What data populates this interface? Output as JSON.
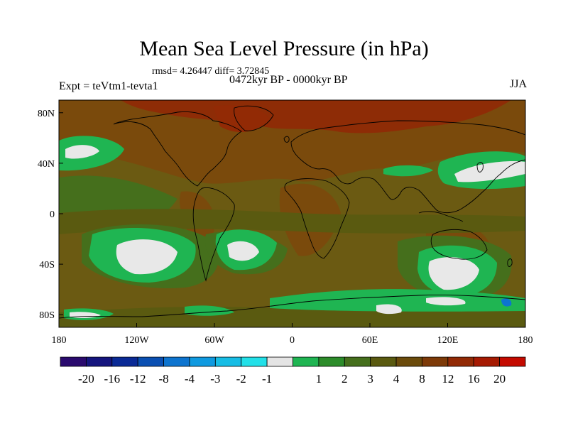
{
  "title": "Mean Sea Level Pressure (in hPa)",
  "stats_text": "rmsd= 4.26447 diff= 3.72845",
  "period_text": "0472kyr BP - 0000kyr BP",
  "experiment_label": "Expt = teVtm1-tevta1",
  "season": "JJA",
  "map": {
    "lon_range": [
      -180,
      180
    ],
    "lat_range": [
      -90,
      90
    ],
    "x_ticks": [
      {
        "value": -180,
        "label": "180"
      },
      {
        "value": -120,
        "label": "120W"
      },
      {
        "value": -60,
        "label": "60W"
      },
      {
        "value": 0,
        "label": "0"
      },
      {
        "value": 60,
        "label": "60E"
      },
      {
        "value": 120,
        "label": "120E"
      },
      {
        "value": 180,
        "label": "180"
      }
    ],
    "y_ticks": [
      {
        "value": 80,
        "label": "80N"
      },
      {
        "value": 40,
        "label": "40N"
      },
      {
        "value": 0,
        "label": "0"
      },
      {
        "value": -40,
        "label": "40S"
      },
      {
        "value": -80,
        "label": "80S"
      }
    ]
  },
  "colorbar": {
    "colors": [
      "#2a0a6e",
      "#15157e",
      "#0a2a96",
      "#0a4fb2",
      "#0d74cf",
      "#0f9ae0",
      "#17bde5",
      "#22e0e8",
      "#e4e4e4",
      "#1fb552",
      "#2c8c2a",
      "#456f1c",
      "#5a5a10",
      "#6b4b0b",
      "#7d3a08",
      "#922a05",
      "#a61a02",
      "#c40a00"
    ],
    "labels": [
      "-20",
      "-16",
      "-12",
      "-8",
      "-4",
      "-3",
      "-2",
      "-1",
      "1",
      "2",
      "3",
      "4",
      "8",
      "12",
      "16",
      "20"
    ]
  },
  "colors": {
    "background_field": "#6b5a12",
    "land_brown": "#7a4a0c",
    "arctic_red": "#8e2c06",
    "green": "#1fb552",
    "dark_green": "#2c8c2a",
    "olive": "#456f1c",
    "white": "#e8e8e8"
  }
}
